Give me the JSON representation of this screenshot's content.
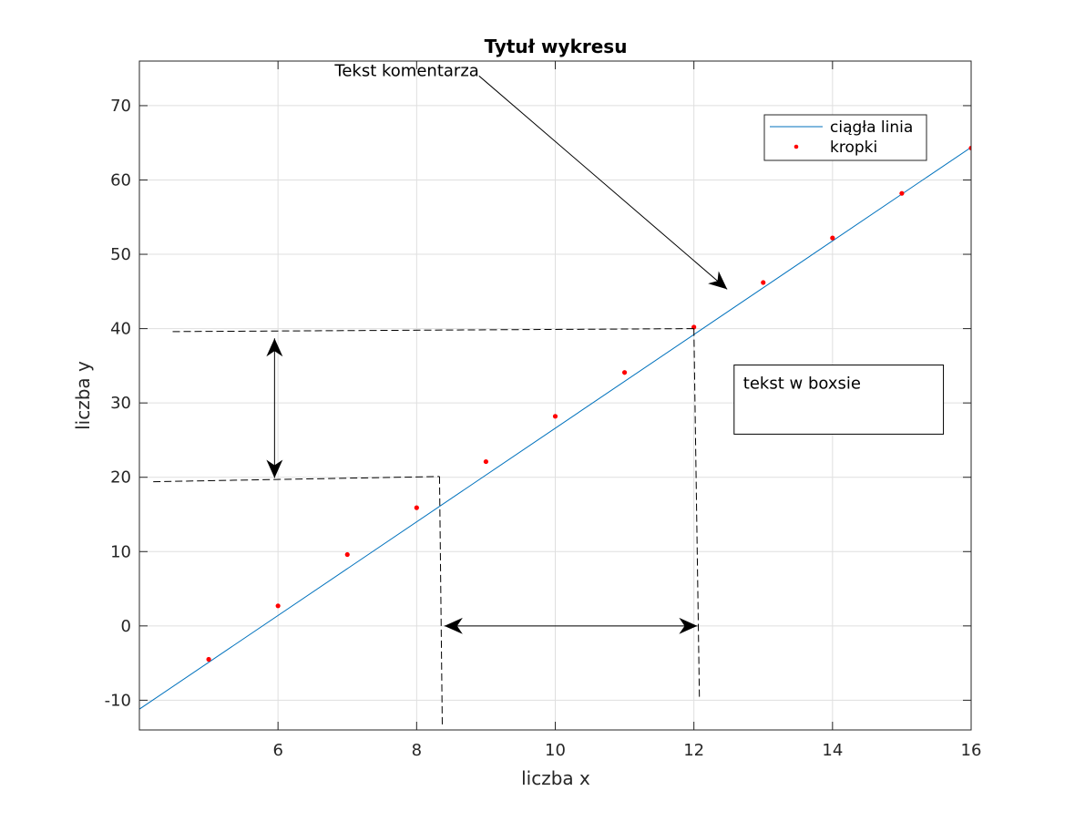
{
  "chart_data": {
    "type": "line",
    "title": "Tytuł wykresu",
    "xlabel": "liczba x",
    "ylabel": "liczba y",
    "xlim": [
      4,
      16
    ],
    "ylim": [
      -14,
      76
    ],
    "xticks": [
      6,
      8,
      10,
      12,
      14,
      16
    ],
    "yticks": [
      -10,
      0,
      10,
      20,
      30,
      40,
      50,
      60,
      70
    ],
    "grid": true,
    "legend_position": "top-right",
    "series": [
      {
        "name": "ciągła linia",
        "style": "line",
        "color": "#0072bd",
        "x": [
          4,
          16
        ],
        "y": [
          -11.2,
          64.4
        ]
      },
      {
        "name": "kropki",
        "style": "markers",
        "color": "#ff0000",
        "x": [
          5,
          6,
          7,
          8,
          9,
          10,
          11,
          12,
          13,
          14,
          15,
          16
        ],
        "y": [
          -4.5,
          2.7,
          9.6,
          15.9,
          22.1,
          28.2,
          34.1,
          40.2,
          46.2,
          52.2,
          58.2,
          64.3
        ]
      }
    ],
    "annotations": {
      "comment_text": "Tekst komentarza",
      "comment_arrow": {
        "from": [
          8.9,
          74
        ],
        "to": [
          12.48,
          45.3
        ]
      },
      "textbox": {
        "text": "tekst w boxsie",
        "x": [
          12.58,
          15.6
        ],
        "y": [
          25.8,
          35.1
        ]
      },
      "double_arrows": [
        {
          "from": [
            5.95,
            38.7
          ],
          "to": [
            5.95,
            19.9
          ]
        },
        {
          "from": [
            8.4,
            0
          ],
          "to": [
            12.05,
            0
          ]
        }
      ],
      "dashed_lines": [
        {
          "from": [
            4.48,
            39.6
          ],
          "to": [
            12.0,
            40.0
          ]
        },
        {
          "from": [
            4.2,
            19.4
          ],
          "to": [
            8.33,
            20.1
          ]
        },
        {
          "from": [
            8.33,
            20.1
          ],
          "to": [
            8.37,
            -13.5
          ]
        },
        {
          "from": [
            12.0,
            40.0
          ],
          "to": [
            12.08,
            -10.0
          ]
        }
      ]
    }
  }
}
